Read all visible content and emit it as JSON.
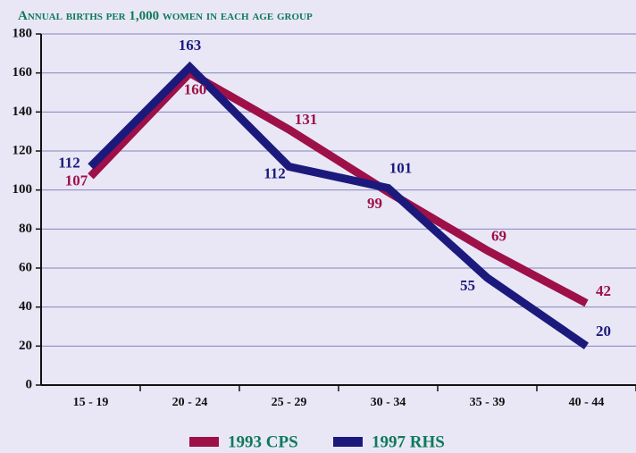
{
  "chart_data": {
    "type": "line",
    "title": "Annual births per 1,000 women in each age group",
    "categories": [
      "15 - 19",
      "20 - 24",
      "25 - 29",
      "30 - 34",
      "35 - 39",
      "40 - 44"
    ],
    "series": [
      {
        "name": "1993 CPS",
        "color": "#9e1048",
        "values": [
          107,
          160,
          131,
          99,
          69,
          42
        ]
      },
      {
        "name": "1997 RHS",
        "color": "#1b1a7c",
        "values": [
          112,
          163,
          112,
          101,
          55,
          20
        ]
      }
    ],
    "ylim": [
      0,
      180
    ],
    "yticks": [
      0,
      20,
      40,
      60,
      80,
      100,
      120,
      140,
      160,
      180
    ],
    "grid": true,
    "legend": "bottom"
  }
}
